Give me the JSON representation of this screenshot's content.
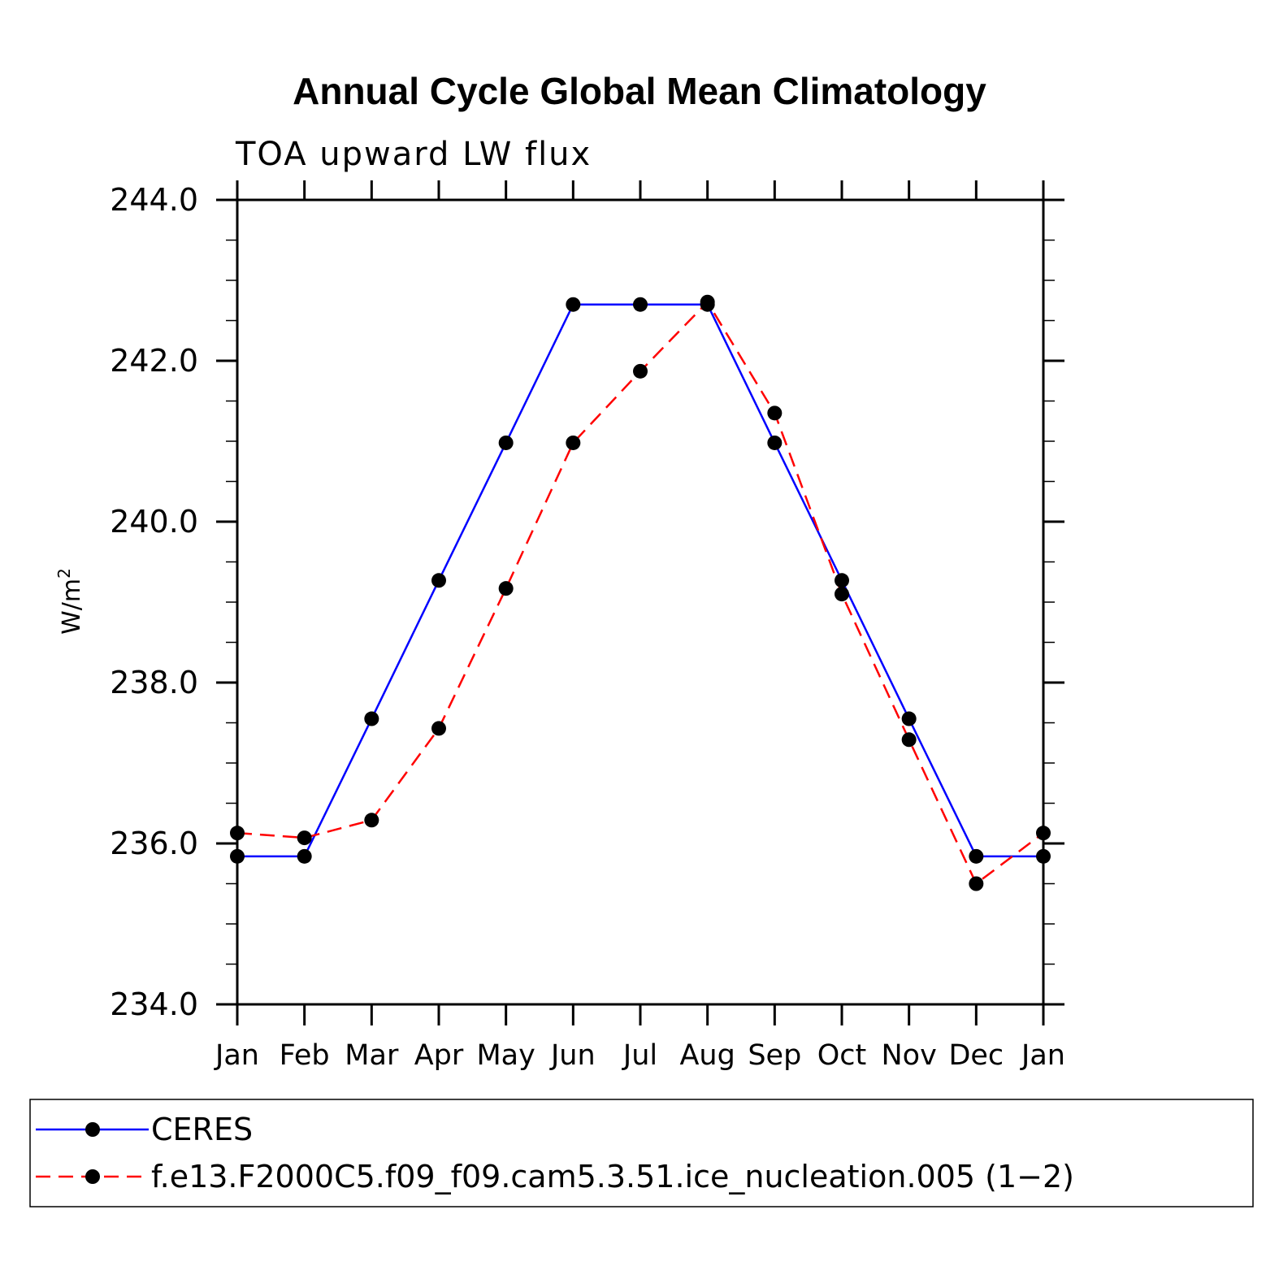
{
  "chart_data": {
    "type": "line",
    "title": "Annual Cycle Global Mean Climatology",
    "subtitle": "TOA upward LW flux",
    "xlabel": "",
    "ylabel": "W/m",
    "ylabel_sup": "2",
    "categories": [
      "Jan",
      "Feb",
      "Mar",
      "Apr",
      "May",
      "Jun",
      "Jul",
      "Aug",
      "Sep",
      "Oct",
      "Nov",
      "Dec",
      "Jan"
    ],
    "ylim": [
      234.0,
      244.0
    ],
    "yticks": [
      234.0,
      236.0,
      238.0,
      240.0,
      242.0,
      244.0
    ],
    "ytick_labels": [
      "234.0",
      "236.0",
      "238.0",
      "240.0",
      "242.0",
      "244.0"
    ],
    "y_minor_step": 0.5,
    "grid": false,
    "legend_position": "bottom",
    "series": [
      {
        "name": "CERES",
        "color": "#0000ff",
        "dash": "solid",
        "values": [
          235.84,
          235.84,
          237.55,
          239.27,
          240.98,
          242.7,
          242.7,
          242.7,
          240.98,
          239.27,
          237.55,
          235.84,
          235.84
        ]
      },
      {
        "name": "f.e13.F2000C5.f09_f09.cam5.3.51.ice_nucleation.005 (1−2)",
        "color": "#ff0000",
        "dash": "dashed",
        "values": [
          236.13,
          236.07,
          236.29,
          237.43,
          239.17,
          240.98,
          241.87,
          242.73,
          241.35,
          239.1,
          237.29,
          235.5,
          236.13
        ]
      }
    ]
  }
}
